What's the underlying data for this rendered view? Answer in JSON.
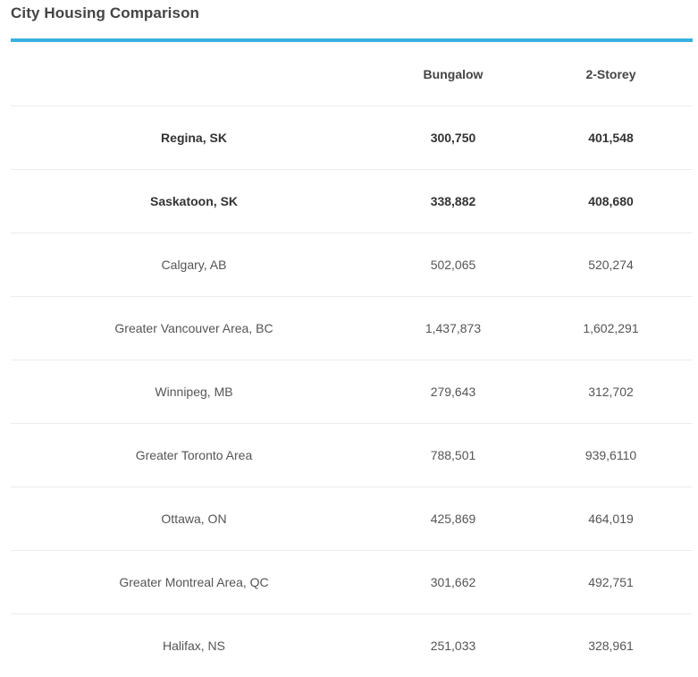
{
  "title": "City Housing Comparison",
  "colors": {
    "accent": "#3aafe0",
    "row_divider": "#ececec",
    "text": "#444444"
  },
  "table": {
    "headers": [
      "",
      "Bungalow",
      "2-Storey"
    ],
    "rows": [
      {
        "city": "Regina, SK",
        "bungalow": "300,750",
        "two_storey": "401,548",
        "bold": true
      },
      {
        "city": "Saskatoon, SK",
        "bungalow": "338,882",
        "two_storey": "408,680",
        "bold": true
      },
      {
        "city": "Calgary, AB",
        "bungalow": "502,065",
        "two_storey": "520,274",
        "bold": false
      },
      {
        "city": "Greater Vancouver Area, BC",
        "bungalow": "1,437,873",
        "two_storey": "1,602,291",
        "bold": false
      },
      {
        "city": "Winnipeg, MB",
        "bungalow": "279,643",
        "two_storey": "312,702",
        "bold": false
      },
      {
        "city": "Greater Toronto Area",
        "bungalow": "788,501",
        "two_storey": "939,6110",
        "bold": false
      },
      {
        "city": "Ottawa, ON",
        "bungalow": "425,869",
        "two_storey": "464,019",
        "bold": false
      },
      {
        "city": "Greater Montreal Area, QC",
        "bungalow": "301,662",
        "two_storey": "492,751",
        "bold": false
      },
      {
        "city": "Halifax, NS",
        "bungalow": "251,033",
        "two_storey": "328,961",
        "bold": false
      }
    ]
  }
}
